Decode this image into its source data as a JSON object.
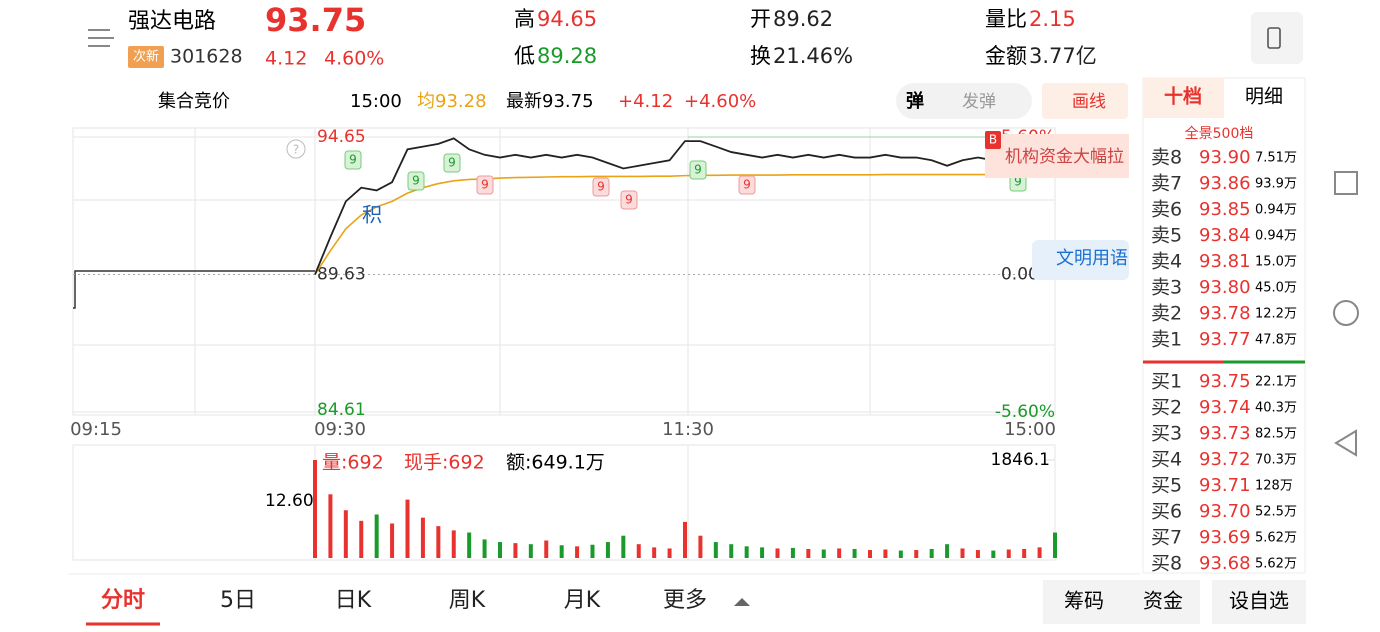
{
  "header": {
    "name": "强达电路",
    "badge": "次新",
    "code": "301628",
    "price": "93.75",
    "change": "4.12",
    "change_pct": "4.60%",
    "stats": [
      {
        "label": "高",
        "value": "94.65",
        "tone": "up"
      },
      {
        "label": "低",
        "value": "89.28",
        "tone": "down"
      },
      {
        "label": "开",
        "value": "89.62",
        "tone": "flat"
      },
      {
        "label": "换",
        "value": "21.46%",
        "tone": "flat"
      },
      {
        "label": "量比",
        "value": "2.15",
        "tone": "up"
      },
      {
        "label": "金额",
        "value": "3.77亿",
        "tone": "flat"
      }
    ]
  },
  "info_bar": {
    "auction": "集合竞价",
    "time": "15:00",
    "avg": "均93.28",
    "latest": "最新93.75",
    "change": "+4.12",
    "change_pct": "+4.60%",
    "danmu": "弹",
    "send": "发弹",
    "draw": "画线"
  },
  "chart": {
    "type": "line",
    "ylim": [
      84.61,
      94.65
    ],
    "yticks": [
      94.65,
      89.63,
      84.61
    ],
    "pct_labels": [
      "5.60%",
      "0.00%",
      "-5.60%"
    ],
    "time_labels": [
      "09:15",
      "09:30",
      "11:30",
      "15:00"
    ],
    "price": [
      89.63,
      91.0,
      92.3,
      92.8,
      92.7,
      93.0,
      94.2,
      94.3,
      94.4,
      94.6,
      94.2,
      94.0,
      93.9,
      94.0,
      93.9,
      94.0,
      93.9,
      94.0,
      93.9,
      93.7,
      93.5,
      93.6,
      93.7,
      93.8,
      94.5,
      94.5,
      94.3,
      94.1,
      94.0,
      93.9,
      94.0,
      93.9,
      94.0,
      93.9,
      94.0,
      93.9,
      93.9,
      94.0,
      93.9,
      93.9,
      93.8,
      93.6,
      93.8,
      93.9,
      93.8,
      93.9,
      93.9,
      94.0,
      93.75
    ],
    "avg": [
      89.63,
      90.5,
      91.3,
      91.8,
      92.1,
      92.3,
      92.6,
      92.8,
      92.95,
      93.05,
      93.1,
      93.12,
      93.15,
      93.17,
      93.18,
      93.19,
      93.2,
      93.2,
      93.21,
      93.21,
      93.21,
      93.21,
      93.22,
      93.22,
      93.24,
      93.25,
      93.25,
      93.26,
      93.26,
      93.26,
      93.26,
      93.27,
      93.27,
      93.27,
      93.27,
      93.27,
      93.27,
      93.28,
      93.28,
      93.28,
      93.28,
      93.28,
      93.28,
      93.28,
      93.28,
      93.28,
      93.28,
      93.28,
      93.28
    ],
    "price_color": "#222222",
    "avg_color": "#e8a317",
    "tags": [
      {
        "label": "9",
        "kind": "up"
      },
      {
        "label": "9",
        "kind": "up"
      },
      {
        "label": "9",
        "kind": "up"
      },
      {
        "label": "9",
        "kind": "down"
      },
      {
        "label": "9",
        "kind": "down"
      },
      {
        "label": "9",
        "kind": "down"
      },
      {
        "label": "9",
        "kind": "up"
      },
      {
        "label": "9",
        "kind": "down"
      },
      {
        "label": "9",
        "kind": "up"
      }
    ],
    "note_ji": "积",
    "note_inst": "机构资金大幅拉",
    "note_civil": "文明用语",
    "note_b": "B"
  },
  "volume": {
    "vol": "量:692",
    "hand": "现手:692",
    "amount": "额:649.1万",
    "ylim": [
      0,
      1846.1
    ],
    "yticks": [
      1846.1
    ],
    "auction_label": "12.60",
    "values": [
      1846,
      1200,
      900,
      700,
      820,
      650,
      1100,
      760,
      600,
      520,
      480,
      350,
      300,
      280,
      260,
      330,
      240,
      220,
      250,
      300,
      420,
      260,
      200,
      180,
      680,
      420,
      300,
      260,
      220,
      200,
      180,
      190,
      170,
      160,
      180,
      170,
      150,
      160,
      140,
      150,
      170,
      260,
      180,
      150,
      140,
      160,
      170,
      200,
      480
    ]
  },
  "order_book": {
    "tabs": [
      "十档",
      "明细"
    ],
    "title": "全景500档",
    "asks": [
      {
        "label": "卖8",
        "price": "93.90",
        "vol": "7.51万"
      },
      {
        "label": "卖7",
        "price": "93.86",
        "vol": "93.9万"
      },
      {
        "label": "卖6",
        "price": "93.85",
        "vol": "0.94万"
      },
      {
        "label": "卖5",
        "price": "93.84",
        "vol": "0.94万"
      },
      {
        "label": "卖4",
        "price": "93.81",
        "vol": "15.0万"
      },
      {
        "label": "卖3",
        "price": "93.80",
        "vol": "45.0万"
      },
      {
        "label": "卖2",
        "price": "93.78",
        "vol": "12.2万"
      },
      {
        "label": "卖1",
        "price": "93.77",
        "vol": "47.8万"
      }
    ],
    "bids": [
      {
        "label": "买1",
        "price": "93.75",
        "vol": "22.1万"
      },
      {
        "label": "买2",
        "price": "93.74",
        "vol": "40.3万"
      },
      {
        "label": "买3",
        "price": "93.73",
        "vol": "82.5万"
      },
      {
        "label": "买4",
        "price": "93.72",
        "vol": "70.3万"
      },
      {
        "label": "买5",
        "price": "93.71",
        "vol": "128万"
      },
      {
        "label": "买6",
        "price": "93.70",
        "vol": "52.5万"
      },
      {
        "label": "买7",
        "price": "93.69",
        "vol": "5.62万"
      },
      {
        "label": "买8",
        "price": "93.68",
        "vol": "5.62万"
      }
    ]
  },
  "bottom_tabs": [
    "分时",
    "5日",
    "日K",
    "周K",
    "月K",
    "更多"
  ],
  "buttons": [
    "筹码",
    "资金",
    "设自选"
  ]
}
